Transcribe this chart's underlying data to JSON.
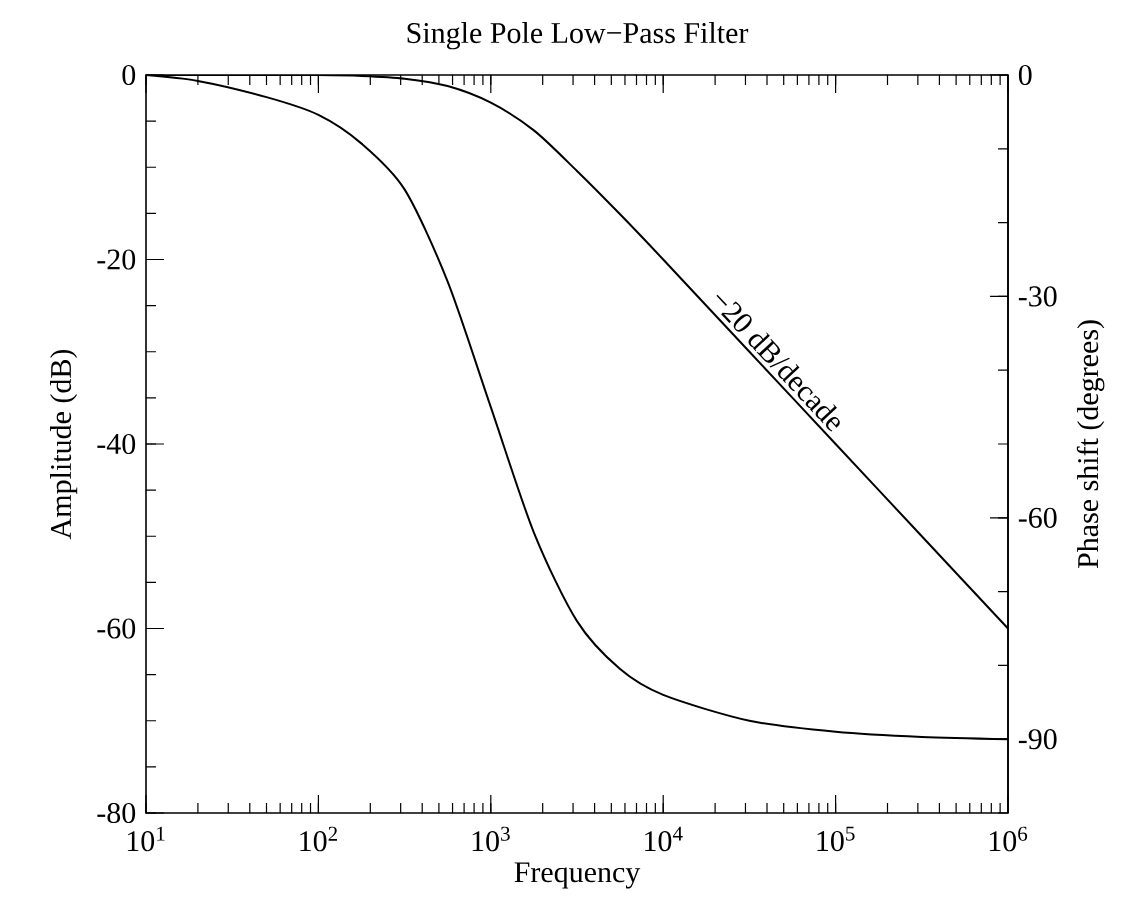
{
  "chart_data": {
    "type": "line",
    "title": "Single Pole Low−Pass Filter",
    "xlabel": "Frequency",
    "ylabel": "Amplitude (dB)",
    "y2label": "Phase shift (degrees)",
    "log": "x",
    "xlim": [
      10,
      1000000
    ],
    "ylim": [
      -80,
      0
    ],
    "y2lim": [
      -100,
      0
    ],
    "xticks": [
      {
        "value": 10,
        "label": "10$^{1}$"
      },
      {
        "value": 100,
        "label": "10$^{2}$"
      },
      {
        "value": 1000,
        "label": "10$^{3}$"
      },
      {
        "value": 10000,
        "label": "10$^{4}$"
      },
      {
        "value": 100000,
        "label": "10$^{5}$"
      },
      {
        "value": 1000000,
        "label": "10$^{6}$"
      }
    ],
    "yticks": [
      0,
      -20,
      -40,
      -60,
      -80
    ],
    "y2ticks": [
      0,
      -30,
      -60,
      -90
    ],
    "x": [
      10,
      20,
      50,
      100,
      178,
      316,
      562,
      1000,
      1778,
      3162,
      5623,
      10000,
      31623,
      100000,
      316228,
      1000000
    ],
    "series": [
      {
        "color": "#000000",
        "values": [
          0,
          0,
          0,
          0,
          -0.1,
          -0.4,
          -1.2,
          -3.0,
          -6.0,
          -10.4,
          -15.1,
          -20.0,
          -30.0,
          -40.0,
          -50.0,
          -60.0
        ]
      },
      {
        "color": "#000000",
        "axis": "y2",
        "values": [
          0,
          -0.8,
          -3,
          -5.4,
          -9.3,
          -15.5,
          -28,
          -45,
          -62,
          -74,
          -80.5,
          -84,
          -87.5,
          -89,
          -89.7,
          -90
        ]
      }
    ],
    "annotations": [
      {
        "text": "−20 dB/decade",
        "x": 40000,
        "y": -32
      }
    ],
    "grid": false,
    "marker": "none",
    "line_style": "solid"
  }
}
